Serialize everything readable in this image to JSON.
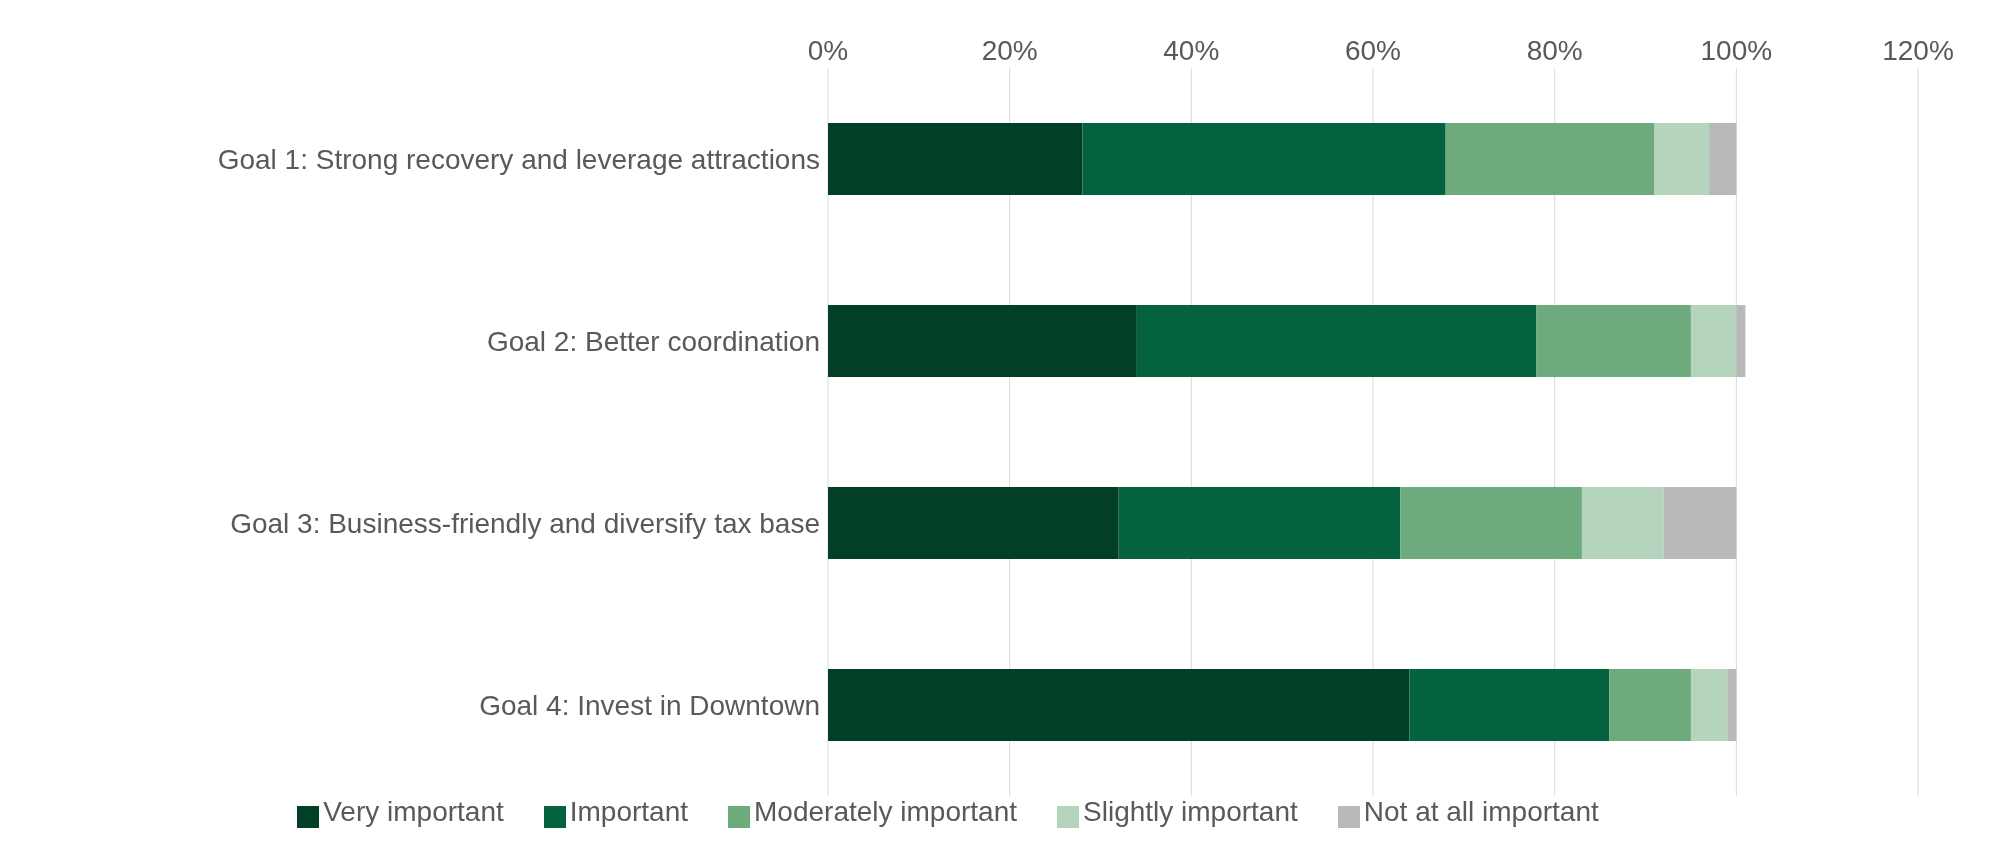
{
  "chart_data": {
    "type": "bar",
    "orientation": "horizontal",
    "stacked": true,
    "categories": [
      "Goal 1: Strong recovery and leverage attractions",
      "Goal 2: Better coordination",
      "Goal 3: Business-friendly and diversify tax base",
      "Goal 4: Invest in Downtown"
    ],
    "series": [
      {
        "name": "Very important",
        "color": "#023f27",
        "values": [
          28,
          34,
          32,
          64
        ]
      },
      {
        "name": "Important",
        "color": "#04633e",
        "values": [
          40,
          44,
          31,
          22
        ]
      },
      {
        "name": "Moderately important",
        "color": "#6daa7c",
        "values": [
          23,
          17,
          20,
          9
        ]
      },
      {
        "name": "Slightly important",
        "color": "#b5d4bd",
        "values": [
          6,
          5,
          9,
          4
        ]
      },
      {
        "name": "Not at all important",
        "color": "#b9b9b9",
        "values": [
          3,
          1,
          8,
          1
        ]
      }
    ],
    "xlim": [
      0,
      120
    ],
    "xticks": [
      {
        "value": 0,
        "label": "0%"
      },
      {
        "value": 20,
        "label": "20%"
      },
      {
        "value": 40,
        "label": "40%"
      },
      {
        "value": 60,
        "label": "60%"
      },
      {
        "value": 80,
        "label": "80%"
      },
      {
        "value": 100,
        "label": "100%"
      },
      {
        "value": 120,
        "label": "120%"
      }
    ],
    "grid": "x",
    "legend": "bottom"
  }
}
